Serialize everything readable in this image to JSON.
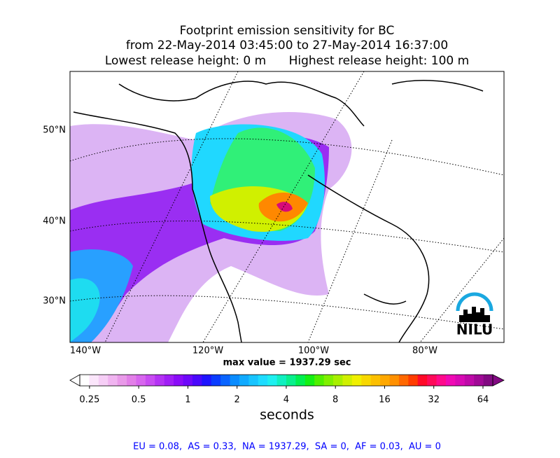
{
  "title": {
    "lines": [
      "Footprint emission sensitivity for BC",
      "from 22-May-2014 03:45:00 to 27-May-2014 16:37:00",
      "Lowest release height: 0 m      Highest release height: 100 m"
    ]
  },
  "map": {
    "lat_labels": [
      "50°N",
      "40°N",
      "30°N"
    ],
    "lon_labels": [
      "140°W",
      "120°W",
      "100°W",
      "80°W"
    ],
    "max_value_label": "max value = 1937.29 sec",
    "logo": "NILU"
  },
  "colorbar": {
    "scale": "log",
    "lim": [
      0.218,
      73.5
    ],
    "ticks": [
      0.25,
      0.5,
      1,
      2,
      4,
      8,
      16,
      32,
      64
    ],
    "label": "seconds",
    "colors": [
      "#ffffff",
      "#fbe6fb",
      "#f6cef6",
      "#f0b4f0",
      "#e99ae9",
      "#e27fe8",
      "#d766ee",
      "#c84cf2",
      "#b432f4",
      "#a01ef6",
      "#8a0cf8",
      "#6e08fa",
      "#4a08fc",
      "#1e14ff",
      "#0a3cff",
      "#0a64ff",
      "#0a8cff",
      "#10aaff",
      "#18c4ff",
      "#1edcff",
      "#1ef0f0",
      "#10f0c0",
      "#08f08c",
      "#00f050",
      "#14f014",
      "#50f000",
      "#80f000",
      "#a8f000",
      "#d0f000",
      "#f0f000",
      "#f8d800",
      "#fcc000",
      "#ffa800",
      "#ff9000",
      "#ff6800",
      "#ff3c00",
      "#ff0a28",
      "#ff0a5a",
      "#ff0a8c",
      "#f00ab4",
      "#d80ab4",
      "#be0aa8",
      "#a00a96",
      "#820a82"
    ]
  },
  "footer": "EU = 0.08,  AS = 0.33,  NA = 1937.29,  SA = 0,  AF = 0.03,  AU = 0"
}
